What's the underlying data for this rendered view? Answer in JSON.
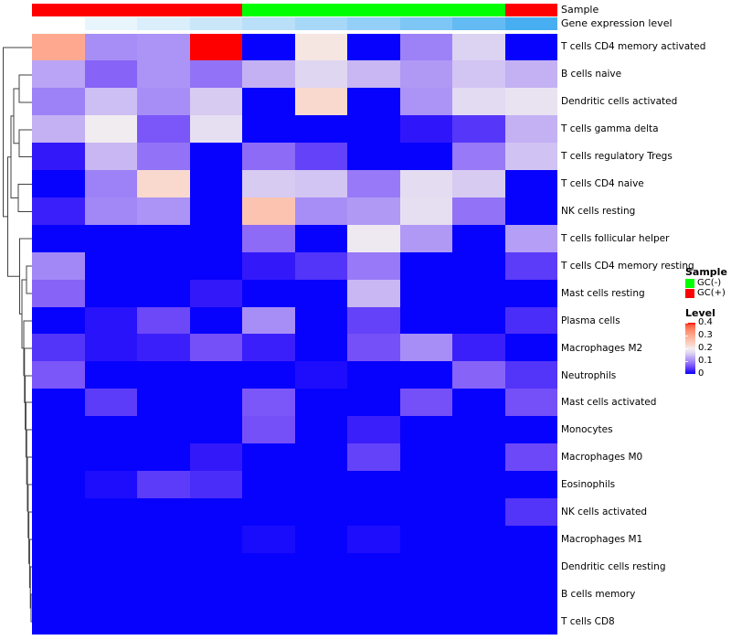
{
  "top_annotations": {
    "sample_label": "Sample",
    "gene_label": "Gene expression level"
  },
  "chart_data": {
    "type": "heatmap",
    "rows": [
      "T cells CD4 memory activated",
      "B cells naive",
      "Dendritic cells activated",
      "T cells gamma delta",
      "T cells regulatory  Tregs",
      "T cells CD4 naive",
      "NK cells resting",
      "T cells follicular helper",
      "T cells CD4 memory resting",
      "Mast cells resting",
      "Plasma cells",
      "Macrophages M2",
      "Neutrophils",
      "Mast cells activated",
      "Monocytes",
      "Macrophages M0",
      "Eosinophils",
      "NK cells activated",
      "Macrophages M1",
      "Dendritic cells resting",
      "B cells memory",
      "T cells CD8"
    ],
    "n_columns": 10,
    "column_sample_group": [
      "GC(+)",
      "GC(+)",
      "GC(+)",
      "GC(+)",
      "GC(-)",
      "GC(-)",
      "GC(-)",
      "GC(-)",
      "GC(-)",
      "GC(+)"
    ],
    "column_gene_expression_color": [
      "#FFFFFF",
      "#E9F5FC",
      "#DAEEFB",
      "#CAE7FA",
      "#BADFF9",
      "#A7D8F8",
      "#93CFF6",
      "#7EC6F5",
      "#64BBF3",
      "#47AFF1"
    ],
    "annotation_colors": {
      "GC(-)": "#00FF00",
      "GC(+)": "#FF0000"
    },
    "value_range": [
      0,
      0.4
    ],
    "matrix": [
      [
        0.3,
        0.105,
        0.11,
        0.4,
        0,
        0.21,
        0,
        0.095,
        0.16,
        0
      ],
      [
        0.125,
        0.075,
        0.11,
        0.085,
        0.135,
        0.165,
        0.14,
        0.115,
        0.15,
        0.135
      ],
      [
        0.095,
        0.145,
        0.105,
        0.155,
        0,
        0.225,
        0,
        0.11,
        0.17,
        0.18
      ],
      [
        0.135,
        0.195,
        0.065,
        0.175,
        0,
        0,
        0,
        0.018,
        0.042,
        0.135
      ],
      [
        0.02,
        0.14,
        0.085,
        0,
        0.08,
        0.05,
        0,
        0,
        0.09,
        0.148
      ],
      [
        0,
        0.095,
        0.225,
        0,
        0.155,
        0.15,
        0.09,
        0.172,
        0.155,
        0
      ],
      [
        0.025,
        0.1,
        0.11,
        0,
        0.26,
        0.105,
        0.115,
        0.175,
        0.085,
        0
      ],
      [
        0,
        0,
        0,
        0,
        0.08,
        0,
        0.19,
        0.115,
        0,
        0.12
      ],
      [
        0.1,
        0,
        0,
        0,
        0.02,
        0.04,
        0.09,
        0,
        0,
        0.045
      ],
      [
        0.075,
        0,
        0,
        0.02,
        0,
        0,
        0.14,
        0,
        0,
        0
      ],
      [
        0,
        0.015,
        0.055,
        0,
        0.105,
        0,
        0.05,
        0,
        0,
        0.035
      ],
      [
        0.04,
        0.015,
        0.025,
        0.06,
        0.025,
        0,
        0.06,
        0.105,
        0.025,
        0
      ],
      [
        0.065,
        0,
        0,
        0,
        0,
        0.01,
        0,
        0,
        0.075,
        0.04
      ],
      [
        0,
        0.045,
        0,
        0,
        0.065,
        0,
        0,
        0.06,
        0,
        0.06
      ],
      [
        0,
        0,
        0,
        0,
        0.06,
        0,
        0.025,
        0,
        0,
        0
      ],
      [
        0,
        0,
        0,
        0.02,
        0,
        0,
        0.05,
        0,
        0,
        0.055
      ],
      [
        0,
        0.01,
        0.045,
        0.035,
        0,
        0,
        0,
        0,
        0,
        0
      ],
      [
        0,
        0,
        0,
        0,
        0,
        0,
        0,
        0,
        0,
        0.04
      ],
      [
        0,
        0,
        0,
        0,
        0.008,
        0,
        0.01,
        0,
        0,
        0
      ],
      [
        0,
        0,
        0,
        0,
        0,
        0,
        0,
        0,
        0,
        0
      ],
      [
        0,
        0,
        0,
        0,
        0,
        0,
        0,
        0,
        0,
        0
      ],
      [
        0,
        0,
        0,
        0,
        0,
        0,
        0,
        0,
        0,
        0
      ]
    ],
    "colormap_stops": [
      {
        "v": 0.0,
        "c": "#0702FE"
      },
      {
        "v": 0.02,
        "c": "#3318FA"
      },
      {
        "v": 0.04,
        "c": "#5334F9"
      },
      {
        "v": 0.06,
        "c": "#754FF8"
      },
      {
        "v": 0.08,
        "c": "#8D6BF7"
      },
      {
        "v": 0.1,
        "c": "#A288F6"
      },
      {
        "v": 0.12,
        "c": "#B59EF5"
      },
      {
        "v": 0.14,
        "c": "#C8B7F3"
      },
      {
        "v": 0.16,
        "c": "#DCD2F2"
      },
      {
        "v": 0.18,
        "c": "#E9E3F1"
      },
      {
        "v": 0.2,
        "c": "#F3EFEF"
      },
      {
        "v": 0.22,
        "c": "#F8DCD2"
      },
      {
        "v": 0.26,
        "c": "#FCC3B0"
      },
      {
        "v": 0.3,
        "c": "#FEA98F"
      },
      {
        "v": 0.34,
        "c": "#FD8C6C"
      },
      {
        "v": 0.38,
        "c": "#F75F41"
      },
      {
        "v": 0.4,
        "c": "#FE0000"
      }
    ]
  },
  "legend": {
    "sample": {
      "title": "Sample",
      "entries": [
        {
          "label": "GC(-)",
          "color": "#00FF00"
        },
        {
          "label": "GC(+)",
          "color": "#FF0000"
        }
      ]
    },
    "level": {
      "title": "Level",
      "ticks": [
        "0.4",
        "0.3",
        "0.2",
        "0.1",
        "0"
      ]
    }
  }
}
